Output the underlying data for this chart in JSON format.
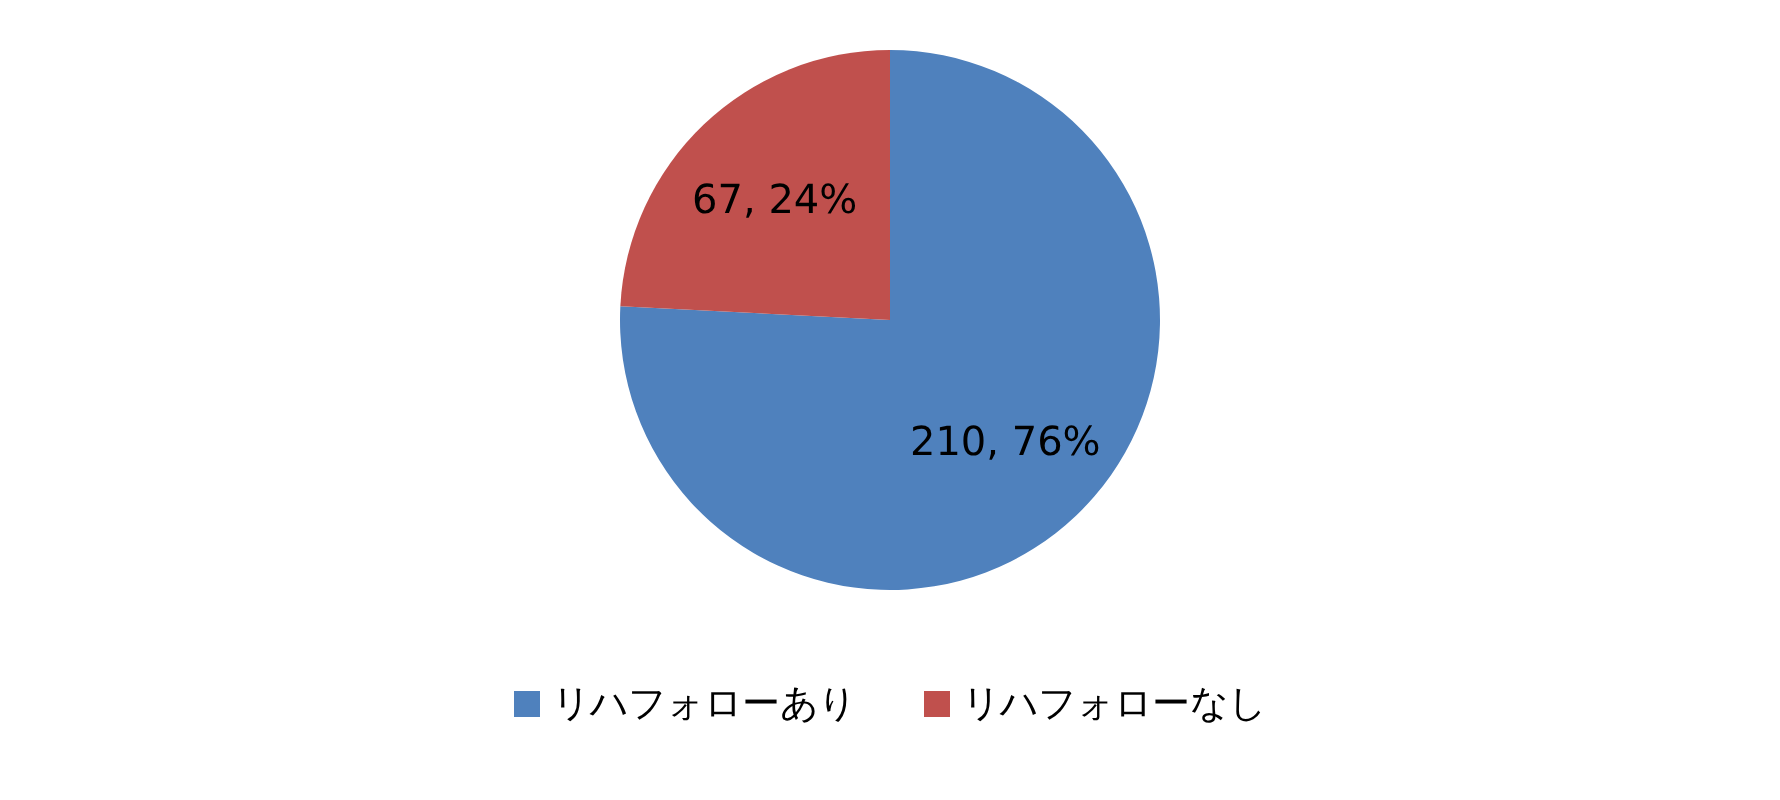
{
  "chart_data": {
    "type": "pie",
    "categories": [
      "リハフォローあり",
      "リハフォローなし"
    ],
    "values": [
      210,
      67
    ],
    "colors": [
      "#4f81bd",
      "#c0504d"
    ],
    "value_labels": [
      "210, 76%",
      "67, 24%"
    ],
    "legend": "bottom"
  }
}
